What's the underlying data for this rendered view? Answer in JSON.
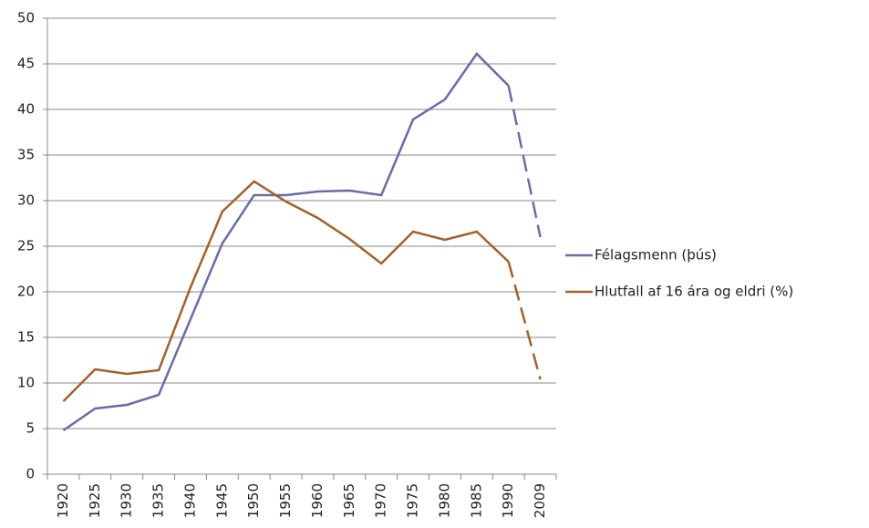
{
  "chart_data": {
    "type": "line",
    "categories": [
      "1920",
      "1925",
      "1930",
      "1935",
      "1940",
      "1945",
      "1950",
      "1955",
      "1960",
      "1965",
      "1970",
      "1975",
      "1980",
      "1985",
      "1990",
      "2009"
    ],
    "series": [
      {
        "name": "Félagsmenn (þús)",
        "color": "#6b6ba6",
        "values": [
          4.8,
          7.2,
          7.6,
          8.7,
          17,
          25.3,
          30.6,
          30.6,
          31,
          31.1,
          30.6,
          38.9,
          41.1,
          46.1,
          42.6,
          26
        ]
      },
      {
        "name": "Hlutfall af 16 ára og eldri (%)",
        "color": "#a0622d",
        "values": [
          8,
          11.5,
          11,
          11.4,
          20.5,
          28.8,
          32.1,
          29.9,
          28.1,
          25.8,
          23.1,
          26.6,
          25.7,
          26.6,
          23.3,
          10.4
        ]
      }
    ],
    "ylim": [
      0,
      50
    ],
    "yticks": [
      0,
      5,
      10,
      15,
      20,
      25,
      30,
      35,
      40,
      45,
      50
    ],
    "grid": true,
    "last_segment_dashed": true,
    "legend": "right"
  }
}
